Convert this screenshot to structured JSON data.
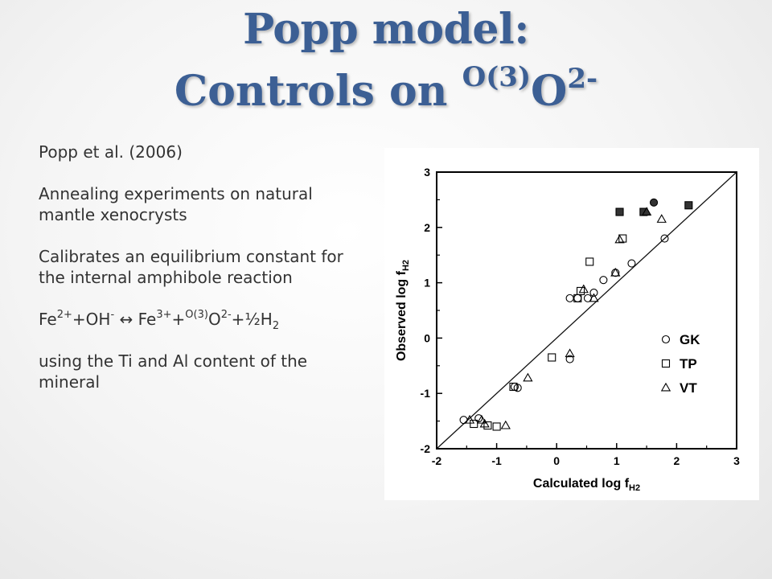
{
  "title": {
    "line1": "Popp model:",
    "line2_prefix": "Controls on ",
    "line2_sup": "O(3)",
    "line2_main": "O",
    "line2_charge": "2-"
  },
  "bullets": {
    "citation": "Popp et al. (2006)",
    "annealing": "Annealing experiments on natural mantle xenocrysts",
    "calibrates": "Calibrates an equilibrium constant for the internal amphibole reaction",
    "reaction": {
      "fe": "Fe",
      "fe_charge": "2+",
      "oh": "+OH",
      "oh_charge": "-",
      "arrow": " ↔ ",
      "fe3": "Fe",
      "fe3_charge": "3+",
      "plus": "+",
      "o3": "O(3)",
      "o": "O",
      "o_charge": "2-",
      "half": "+½H",
      "h_sub": "2"
    },
    "using": "using the Ti and Al content of the mineral"
  },
  "chart_data": {
    "type": "scatter",
    "xlabel": "Calculated log f",
    "xlabel_sub": "H2",
    "ylabel": "Observed log f",
    "ylabel_sub": "H2",
    "xlim": [
      -2,
      3
    ],
    "ylim": [
      -2,
      3
    ],
    "xticks": [
      "-2",
      "-1",
      "0",
      "1",
      "2",
      "3"
    ],
    "yticks": [
      "-2",
      "-1",
      "0",
      "1",
      "2",
      "3"
    ],
    "reference_line": "1:1",
    "legend_position": "lower-right",
    "series": [
      {
        "name": "GK",
        "marker": "circle",
        "points": [
          [
            -1.55,
            -1.48
          ],
          [
            -1.3,
            -1.45
          ],
          [
            -0.7,
            -0.88
          ],
          [
            0.22,
            0.72
          ],
          [
            0.35,
            0.72
          ],
          [
            0.52,
            0.72
          ],
          [
            0.62,
            0.82
          ],
          [
            0.78,
            1.05
          ],
          [
            0.98,
            1.18
          ],
          [
            1.25,
            1.35
          ],
          [
            1.8,
            1.8
          ],
          [
            0.22,
            -0.38
          ],
          [
            -0.65,
            -0.9
          ]
        ],
        "filled_points": [
          [
            1.62,
            2.45
          ]
        ]
      },
      {
        "name": "TP",
        "marker": "square",
        "points": [
          [
            -1.38,
            -1.55
          ],
          [
            -1.15,
            -1.58
          ],
          [
            -0.72,
            -0.88
          ],
          [
            -0.08,
            -0.35
          ],
          [
            0.35,
            0.72
          ],
          [
            0.55,
            1.38
          ],
          [
            1.1,
            1.8
          ],
          [
            0.4,
            0.85
          ],
          [
            -1.0,
            -1.6
          ]
        ],
        "filled_points": [
          [
            1.05,
            2.28
          ],
          [
            1.45,
            2.28
          ],
          [
            2.2,
            2.4
          ]
        ]
      },
      {
        "name": "VT",
        "marker": "triangle",
        "points": [
          [
            -1.45,
            -1.48
          ],
          [
            -1.25,
            -1.48
          ],
          [
            -0.85,
            -1.58
          ],
          [
            -0.48,
            -0.72
          ],
          [
            0.22,
            -0.28
          ],
          [
            0.45,
            0.88
          ],
          [
            0.62,
            0.72
          ],
          [
            0.98,
            1.18
          ],
          [
            1.05,
            1.78
          ],
          [
            1.75,
            2.15
          ],
          [
            -1.2,
            -1.55
          ]
        ],
        "filled_points": [
          [
            1.5,
            2.28
          ]
        ]
      }
    ]
  }
}
